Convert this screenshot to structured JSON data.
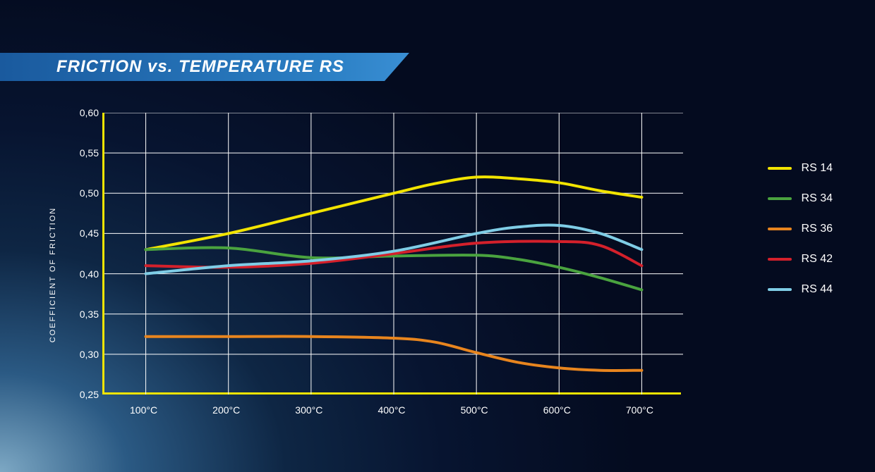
{
  "title": "FRICTION vs. TEMPERATURE RS",
  "ylabel": "COEFFICIENT OF FRICTION",
  "chart": {
    "type": "line",
    "axis_color": "#f2e400",
    "grid_color": "#ffffff",
    "background": "transparent",
    "text_color": "#ffffff",
    "line_width": 4,
    "label_fontsize": 14,
    "ylabel_fontsize": 11,
    "x": {
      "min": 50,
      "max": 750,
      "ticks": [
        100,
        200,
        300,
        400,
        500,
        600,
        700
      ],
      "tick_labels": [
        "100°C",
        "200°C",
        "300°C",
        "400°C",
        "500°C",
        "600°C",
        "700°C"
      ],
      "grid_lines": [
        100,
        200,
        300,
        400,
        500,
        600,
        700
      ]
    },
    "y": {
      "min": 0.25,
      "max": 0.6,
      "ticks": [
        0.25,
        0.3,
        0.35,
        0.4,
        0.45,
        0.5,
        0.55,
        0.6
      ],
      "tick_labels": [
        "0,25",
        "0,30",
        "0,35",
        "0,40",
        "0,45",
        "0,50",
        "0,55",
        "0,60"
      ],
      "grid_lines": [
        0.3,
        0.35,
        0.4,
        0.45,
        0.5,
        0.55,
        0.6
      ]
    },
    "series": [
      {
        "name": "RS 14",
        "color": "#f2e400",
        "x": [
          100,
          200,
          300,
          400,
          450,
          500,
          550,
          600,
          650,
          700
        ],
        "y": [
          0.43,
          0.45,
          0.475,
          0.5,
          0.512,
          0.52,
          0.518,
          0.513,
          0.503,
          0.495
        ]
      },
      {
        "name": "RS 34",
        "color": "#4aa33f",
        "x": [
          100,
          200,
          300,
          400,
          500,
          550,
          600,
          650,
          700
        ],
        "y": [
          0.43,
          0.432,
          0.42,
          0.422,
          0.423,
          0.418,
          0.408,
          0.395,
          0.38
        ]
      },
      {
        "name": "RS 36",
        "color": "#e8851e",
        "x": [
          100,
          200,
          300,
          400,
          450,
          500,
          550,
          600,
          650,
          700
        ],
        "y": [
          0.322,
          0.322,
          0.322,
          0.32,
          0.315,
          0.302,
          0.29,
          0.283,
          0.28,
          0.28
        ]
      },
      {
        "name": "RS 42",
        "color": "#d4202b",
        "x": [
          100,
          200,
          300,
          400,
          500,
          600,
          650,
          700
        ],
        "y": [
          0.41,
          0.408,
          0.413,
          0.425,
          0.438,
          0.44,
          0.435,
          0.41
        ]
      },
      {
        "name": "RS 44",
        "color": "#7fcde6",
        "x": [
          100,
          200,
          300,
          400,
          500,
          550,
          600,
          650,
          700
        ],
        "y": [
          0.4,
          0.41,
          0.416,
          0.428,
          0.45,
          0.458,
          0.46,
          0.45,
          0.43
        ]
      }
    ]
  },
  "legend_position": "right"
}
